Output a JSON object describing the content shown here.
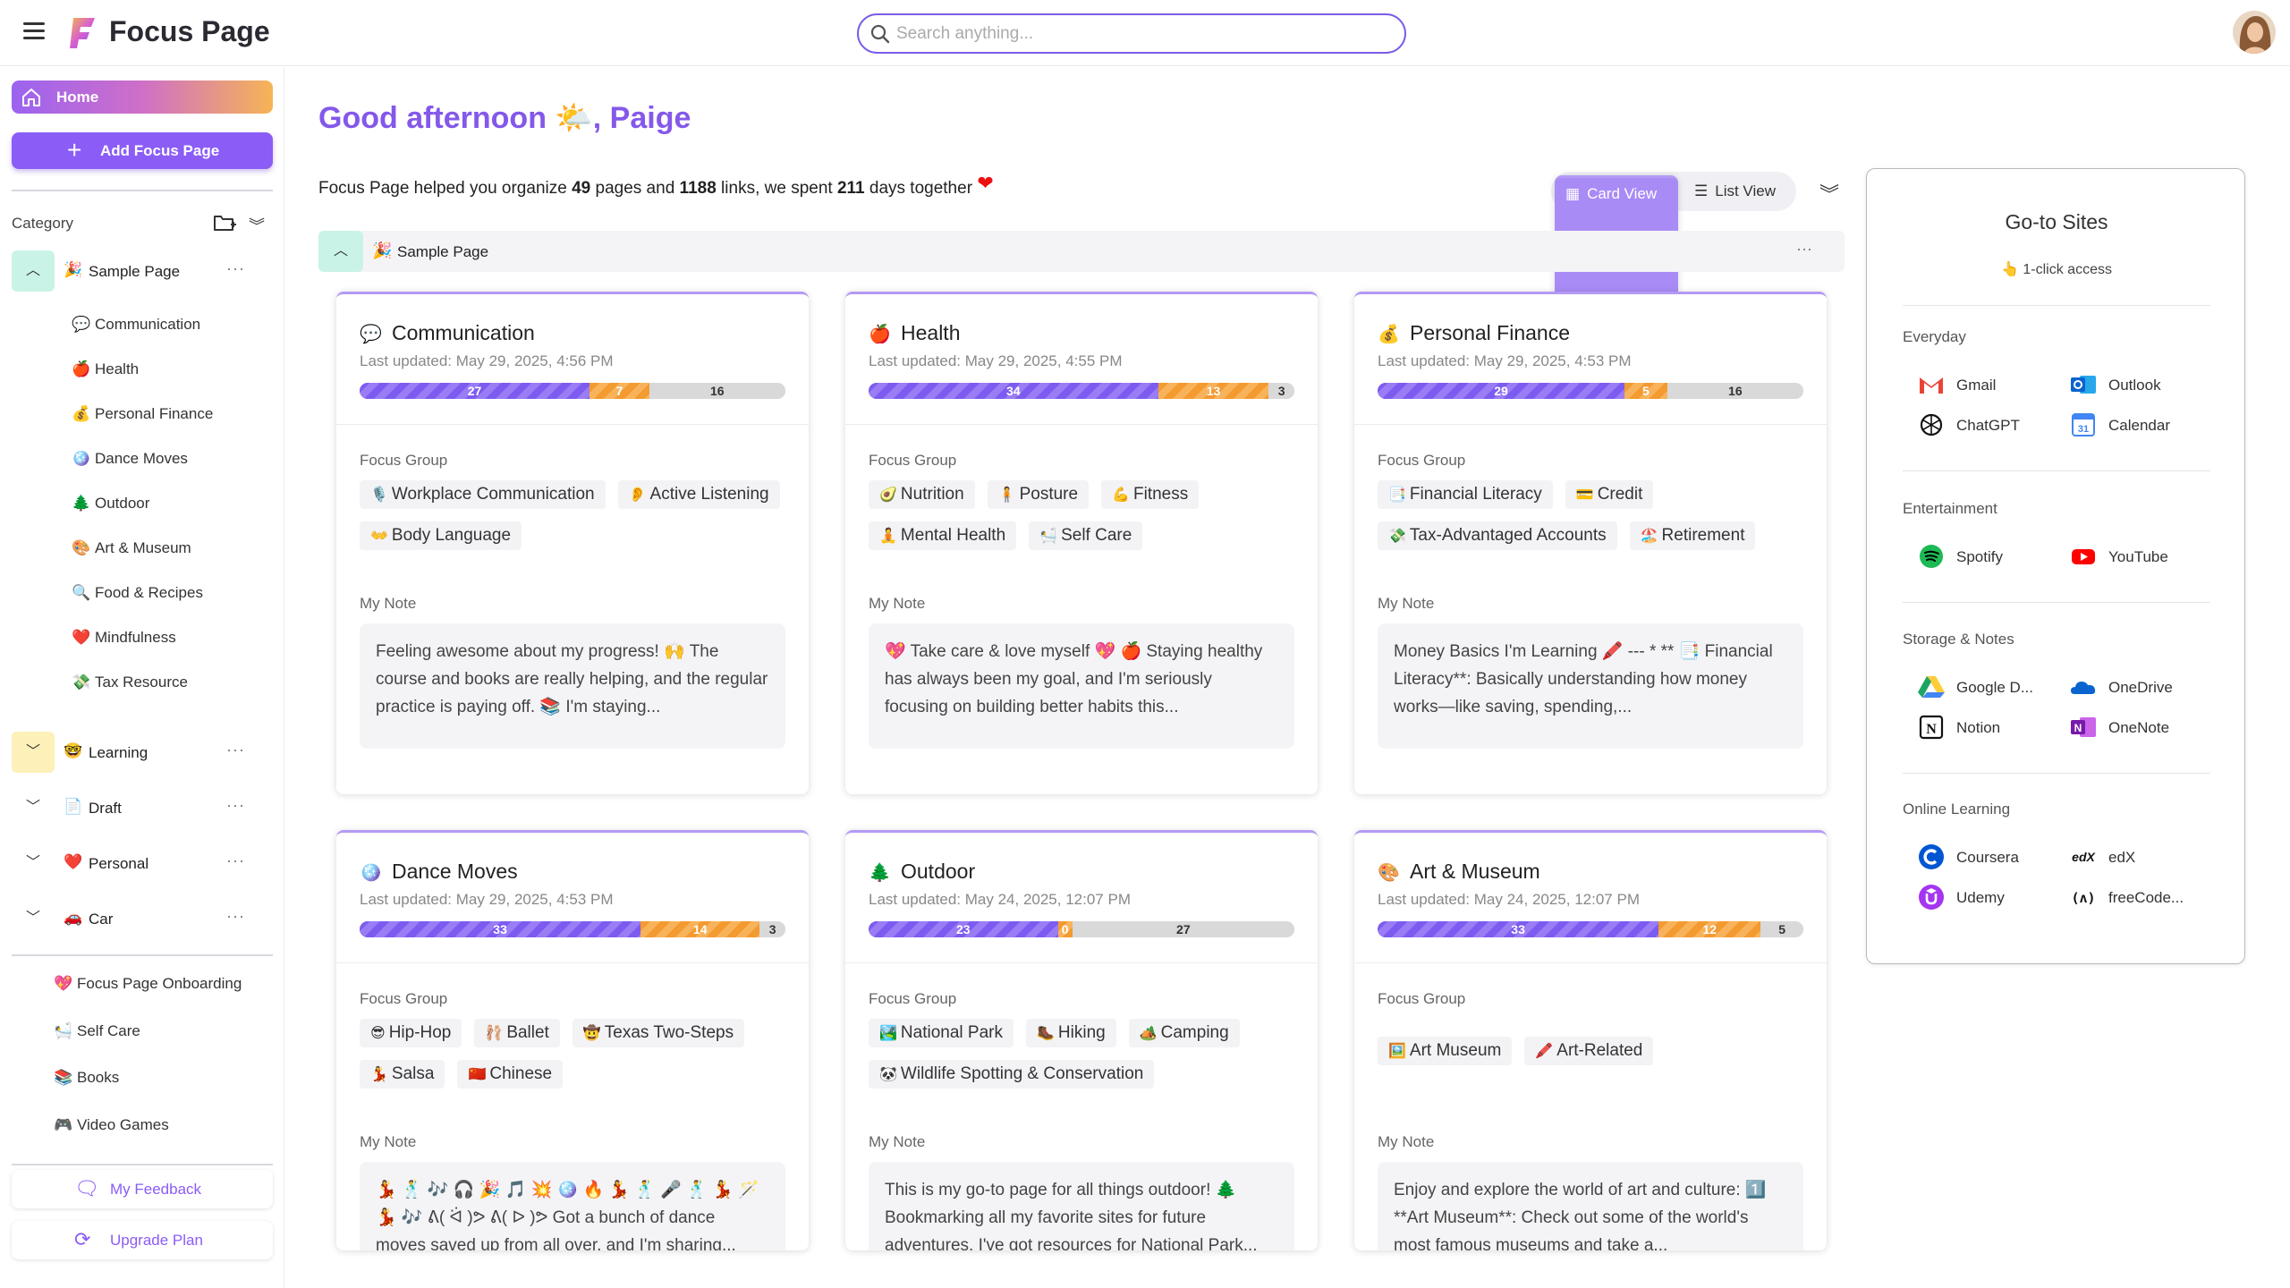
{
  "app": {
    "title": "Focus Page"
  },
  "search": {
    "placeholder": "Search anything..."
  },
  "sidebar": {
    "home_label": "Home",
    "add_label": "Add Focus Page",
    "category_label": "Category",
    "groups": [
      {
        "emoji": "🎉",
        "label": "Sample Page",
        "expanded": true,
        "items": [
          {
            "emoji": "💬",
            "label": "Communication"
          },
          {
            "emoji": "🍎",
            "label": "Health"
          },
          {
            "emoji": "💰",
            "label": "Personal Finance"
          },
          {
            "emoji": "🪩",
            "label": "Dance Moves"
          },
          {
            "emoji": "🌲",
            "label": "Outdoor"
          },
          {
            "emoji": "🎨",
            "label": "Art & Museum"
          },
          {
            "emoji": "🔍",
            "label": "Food & Recipes"
          },
          {
            "emoji": "❤️",
            "label": "Mindfulness"
          },
          {
            "emoji": "💸",
            "label": "Tax Resource"
          }
        ]
      },
      {
        "emoji": "🤓",
        "label": "Learning",
        "expanded": false
      },
      {
        "emoji": "📄",
        "label": "Draft",
        "expanded": false
      },
      {
        "emoji": "❤️",
        "label": "Personal",
        "expanded": false
      },
      {
        "emoji": "🚗",
        "label": "Car",
        "expanded": false
      }
    ],
    "favorites": [
      {
        "emoji": "💖",
        "label": "Focus Page Onboarding"
      },
      {
        "emoji": "🛀",
        "label": "Self Care"
      },
      {
        "emoji": "📚",
        "label": "Books"
      },
      {
        "emoji": "🎮",
        "label": "Video Games"
      }
    ],
    "feedback_label": "My Feedback",
    "upgrade_label": "Upgrade Plan"
  },
  "main": {
    "greeting_prefix": "Good afternoon",
    "greeting_emoji": "🌤️",
    "greeting_name": ", Paige",
    "summary": {
      "pre": "Focus Page helped you organize ",
      "pages": "49",
      "mid1": " pages and ",
      "links": "1188",
      "mid2": " links, we spent ",
      "days": "211",
      "post": " days together ",
      "heart": "❤"
    },
    "card_view_label": "Card View",
    "list_view_label": "List View",
    "page_section": {
      "emoji": "🎉",
      "label": "Sample Page"
    },
    "focus_group_label": "Focus Group",
    "note_label": "My Note",
    "cards": [
      {
        "emoji": "💬",
        "title": "Communication",
        "updated": "Last updated: May 29, 2025, 4:56 PM",
        "bar": [
          27,
          7,
          16
        ],
        "tags": [
          {
            "emoji": "🎙️",
            "label": "Workplace Communication"
          },
          {
            "emoji": "👂",
            "label": "Active Listening"
          },
          {
            "emoji": "👐",
            "label": "Body Language"
          }
        ],
        "note": "Feeling awesome about my progress! 🙌 The course and books are really helping, and the regular practice is paying off. 📚 I'm staying..."
      },
      {
        "emoji": "🍎",
        "title": "Health",
        "updated": "Last updated: May 29, 2025, 4:55 PM",
        "bar": [
          34,
          13,
          3
        ],
        "tags": [
          {
            "emoji": "🥑",
            "label": "Nutrition"
          },
          {
            "emoji": "🧍",
            "label": "Posture"
          },
          {
            "emoji": "💪",
            "label": "Fitness"
          },
          {
            "emoji": "🧘",
            "label": "Mental Health"
          },
          {
            "emoji": "🛀",
            "label": "Self Care"
          }
        ],
        "note": "💖 Take care & love myself 💖 🍎 Staying healthy has always been my goal, and I'm seriously focusing on building better habits this..."
      },
      {
        "emoji": "💰",
        "title": "Personal Finance",
        "updated": "Last updated: May 29, 2025, 4:53 PM",
        "bar": [
          29,
          5,
          16
        ],
        "tags": [
          {
            "emoji": "📑",
            "label": "Financial Literacy"
          },
          {
            "emoji": "💳",
            "label": "Credit"
          },
          {
            "emoji": "💸",
            "label": "Tax-Advantaged Accounts"
          },
          {
            "emoji": "🏖️",
            "label": "Retirement"
          }
        ],
        "note": "Money Basics I'm Learning 🖍️ --- * ** 📑 Financial Literacy**: Basically understanding how money works—like saving, spending,..."
      },
      {
        "emoji": "🪩",
        "title": "Dance Moves",
        "updated": "Last updated: May 29, 2025, 4:53 PM",
        "bar": [
          33,
          14,
          3
        ],
        "tags": [
          {
            "emoji": "😎",
            "label": "Hip-Hop"
          },
          {
            "emoji": "🩰",
            "label": "Ballet"
          },
          {
            "emoji": "🤠",
            "label": "Texas Two-Steps"
          },
          {
            "emoji": "💃",
            "label": "Salsa"
          },
          {
            "emoji": "🇨🇳",
            "label": "Chinese"
          }
        ],
        "note": "💃 🕺 🎶 🎧 🎉 🎵 💥 🪩 🔥 💃 🕺 🎤 🕺 💃 🪄 💃 🎶 ᕕ( ᐛ )ᕗ ᕕ( ᐅ )ᕗ Got a bunch of dance moves saved up from all over, and I'm sharing..."
      },
      {
        "emoji": "🌲",
        "title": "Outdoor",
        "updated": "Last updated: May 24, 2025, 12:07 PM",
        "bar": [
          23,
          0,
          27
        ],
        "tags": [
          {
            "emoji": "🏞️",
            "label": "National Park"
          },
          {
            "emoji": "🥾",
            "label": "Hiking"
          },
          {
            "emoji": "🏕️",
            "label": "Camping"
          },
          {
            "emoji": "🐼",
            "label": "Wildlife Spotting & Conservation"
          }
        ],
        "note": "This is my go-to page for all things outdoor! 🌲 Bookmarking all my favorite sites for future adventures. I've got resources for National Park..."
      },
      {
        "emoji": "🎨",
        "title": "Art & Museum",
        "updated": "Last updated: May 24, 2025, 12:07 PM",
        "bar": [
          33,
          12,
          5
        ],
        "tags": [
          {
            "emoji": "🖼️",
            "label": "Art Museum"
          },
          {
            "emoji": "🖍️",
            "label": "Art-Related"
          }
        ],
        "note": "Enjoy and explore the world of art and culture: 1️⃣ **Art Museum**: Check out some of the world's most famous museums and take a..."
      }
    ]
  },
  "goto": {
    "title": "Go-to Sites",
    "subtitle_emoji": "👆",
    "subtitle": "1-click access",
    "sections": [
      {
        "name": "Everyday",
        "sites": [
          {
            "name": "Gmail",
            "icon": "gmail-icon",
            "color": "#ea4335"
          },
          {
            "name": "Outlook",
            "icon": "outlook-icon",
            "color": "#0a64d0"
          },
          {
            "name": "ChatGPT",
            "icon": "chatgpt-icon",
            "color": "#111111"
          },
          {
            "name": "Calendar",
            "icon": "calendar-icon",
            "color": "#4285f4"
          }
        ]
      },
      {
        "name": "Entertainment",
        "sites": [
          {
            "name": "Spotify",
            "icon": "spotify-icon",
            "color": "#1db954"
          },
          {
            "name": "YouTube",
            "icon": "youtube-icon",
            "color": "#ff0000"
          }
        ]
      },
      {
        "name": "Storage & Notes",
        "sites": [
          {
            "name": "Google D...",
            "icon": "google-drive-icon",
            "color": "#1fa463"
          },
          {
            "name": "OneDrive",
            "icon": "onedrive-icon",
            "color": "#0a64d0"
          },
          {
            "name": "Notion",
            "icon": "notion-icon",
            "color": "#111111"
          },
          {
            "name": "OneNote",
            "icon": "onenote-icon",
            "color": "#7719aa"
          }
        ]
      },
      {
        "name": "Online Learning",
        "sites": [
          {
            "name": "Coursera",
            "icon": "coursera-icon",
            "color": "#0056d2"
          },
          {
            "name": "edX",
            "icon": "edx-icon",
            "color": "#111111"
          },
          {
            "name": "Udemy",
            "icon": "udemy-icon",
            "color": "#a435f0"
          },
          {
            "name": "freeCode...",
            "icon": "freecodecamp-icon",
            "color": "#111111"
          }
        ]
      }
    ]
  },
  "colors": {
    "accent": "#8458ea",
    "bar_purple": "#7c5cf0",
    "bar_orange": "#f39a30",
    "bar_gray": "#d9d9d9"
  }
}
